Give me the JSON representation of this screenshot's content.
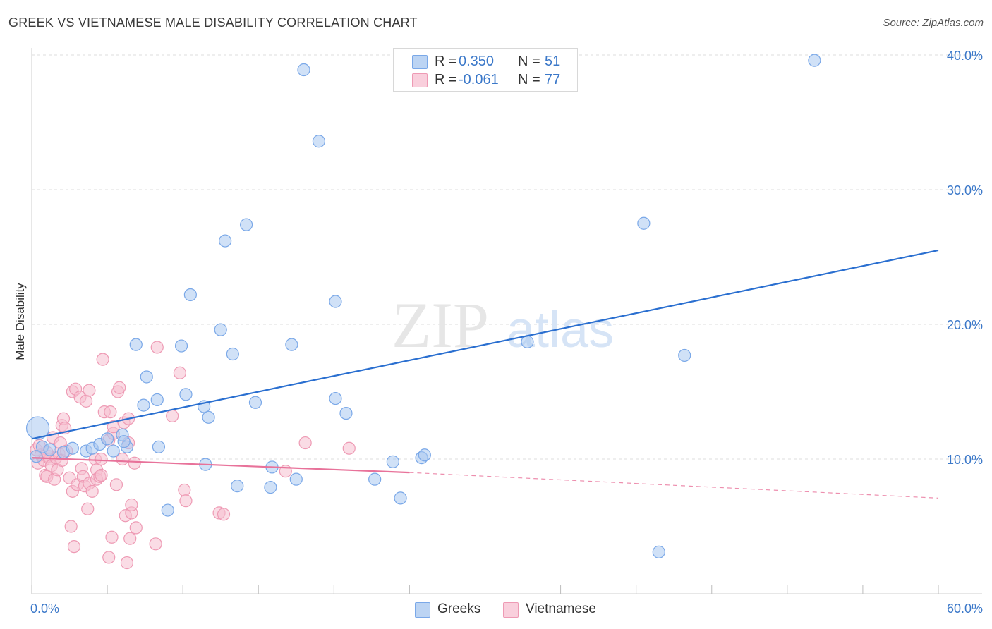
{
  "title": "GREEK VS VIETNAMESE MALE DISABILITY CORRELATION CHART",
  "source": "Source: ZipAtlas.com",
  "watermark": {
    "zip": "ZIP",
    "atlas": "atlas"
  },
  "legend_top": [
    {
      "r_label": "R =",
      "r_value": "0.350",
      "n_label": "N =",
      "n_value": "51",
      "color": "#7aa8e8"
    },
    {
      "r_label": "R =",
      "r_value": "-0.061",
      "n_label": "N =",
      "n_value": "77",
      "color": "#f09ab5"
    }
  ],
  "legend_bottom": [
    {
      "label": "Greeks",
      "color": "#7aa8e8"
    },
    {
      "label": "Vietnamese",
      "color": "#f09ab5"
    }
  ],
  "colors": {
    "greeks_fill": "#a9c8f0",
    "greeks_stroke": "#7aa8e8",
    "greeks_line": "#2a6fd0",
    "viet_fill": "#f6bfd0",
    "viet_stroke": "#ee9ab4",
    "viet_line": "#e8729a",
    "tick": "#3b78c9",
    "grid": "#dcdcdc"
  },
  "chart_data": {
    "type": "scatter",
    "ylabel": "Male Disability",
    "xlabel": "",
    "xlim": [
      0,
      60
    ],
    "ylim": [
      0,
      40
    ],
    "x_tick_labels": [
      {
        "v": 0,
        "label": "0.0%"
      },
      {
        "v": 60,
        "label": "60.0%"
      }
    ],
    "y_ticks": [
      {
        "v": 10,
        "label": "10.0%"
      },
      {
        "v": 20,
        "label": "20.0%"
      },
      {
        "v": 30,
        "label": "30.0%"
      },
      {
        "v": 40,
        "label": "40.0%"
      }
    ],
    "grid": true,
    "series": [
      {
        "name": "Greeks",
        "points": [
          [
            0.4,
            12.3
          ],
          [
            0.7,
            10.9
          ],
          [
            1.2,
            10.7
          ],
          [
            2.1,
            10.5
          ],
          [
            2.7,
            10.8
          ],
          [
            3.6,
            10.6
          ],
          [
            4.0,
            10.8
          ],
          [
            4.5,
            11.1
          ],
          [
            5.0,
            11.5
          ],
          [
            5.4,
            10.6
          ],
          [
            6.0,
            11.8
          ],
          [
            6.3,
            10.9
          ],
          [
            6.9,
            18.5
          ],
          [
            7.6,
            16.1
          ],
          [
            7.4,
            14.0
          ],
          [
            8.3,
            14.4
          ],
          [
            8.4,
            10.9
          ],
          [
            9.0,
            6.2
          ],
          [
            9.9,
            18.4
          ],
          [
            10.2,
            14.8
          ],
          [
            10.5,
            22.2
          ],
          [
            11.4,
            13.9
          ],
          [
            11.5,
            9.6
          ],
          [
            11.7,
            13.1
          ],
          [
            12.5,
            19.6
          ],
          [
            12.8,
            26.2
          ],
          [
            13.3,
            17.8
          ],
          [
            13.6,
            8.0
          ],
          [
            14.2,
            27.4
          ],
          [
            14.8,
            14.2
          ],
          [
            15.8,
            7.9
          ],
          [
            15.9,
            9.4
          ],
          [
            17.2,
            18.5
          ],
          [
            17.5,
            8.5
          ],
          [
            18.0,
            38.9
          ],
          [
            19.0,
            33.6
          ],
          [
            20.1,
            21.7
          ],
          [
            20.1,
            14.5
          ],
          [
            20.8,
            13.4
          ],
          [
            22.7,
            8.5
          ],
          [
            23.9,
            9.8
          ],
          [
            24.4,
            7.1
          ],
          [
            25.8,
            10.1
          ],
          [
            26.0,
            10.3
          ],
          [
            32.8,
            18.7
          ],
          [
            40.5,
            27.5
          ],
          [
            41.5,
            3.1
          ],
          [
            43.2,
            17.7
          ],
          [
            51.8,
            39.6
          ],
          [
            0.3,
            10.2
          ],
          [
            6.1,
            11.3
          ]
        ],
        "trend": {
          "x": [
            0,
            60
          ],
          "y": [
            11.5,
            25.5
          ]
        }
      },
      {
        "name": "Vietnamese",
        "points": [
          [
            0.3,
            10.7
          ],
          [
            0.4,
            9.7
          ],
          [
            0.6,
            10.3
          ],
          [
            0.8,
            9.9
          ],
          [
            0.9,
            8.8
          ],
          [
            1.0,
            8.7
          ],
          [
            1.1,
            10.2
          ],
          [
            1.2,
            10.0
          ],
          [
            1.3,
            9.5
          ],
          [
            1.4,
            11.6
          ],
          [
            1.5,
            8.5
          ],
          [
            1.6,
            10.1
          ],
          [
            1.7,
            9.2
          ],
          [
            1.8,
            10.4
          ],
          [
            1.9,
            11.2
          ],
          [
            2.0,
            9.9
          ],
          [
            2.0,
            12.5
          ],
          [
            2.1,
            13.0
          ],
          [
            2.2,
            12.3
          ],
          [
            2.3,
            10.6
          ],
          [
            2.5,
            8.6
          ],
          [
            2.6,
            5.0
          ],
          [
            2.7,
            7.6
          ],
          [
            2.7,
            15.0
          ],
          [
            2.8,
            3.5
          ],
          [
            2.9,
            15.2
          ],
          [
            3.0,
            8.1
          ],
          [
            3.2,
            14.6
          ],
          [
            3.3,
            9.3
          ],
          [
            3.4,
            8.7
          ],
          [
            3.5,
            8.0
          ],
          [
            3.6,
            14.3
          ],
          [
            3.7,
            6.3
          ],
          [
            3.8,
            8.2
          ],
          [
            3.8,
            15.1
          ],
          [
            4.0,
            7.6
          ],
          [
            4.2,
            10.0
          ],
          [
            4.3,
            9.2
          ],
          [
            4.3,
            8.5
          ],
          [
            4.5,
            8.7
          ],
          [
            4.6,
            8.8
          ],
          [
            4.6,
            10.0
          ],
          [
            4.7,
            17.4
          ],
          [
            4.8,
            13.5
          ],
          [
            5.1,
            2.7
          ],
          [
            5.1,
            11.4
          ],
          [
            5.2,
            13.5
          ],
          [
            5.3,
            4.2
          ],
          [
            5.4,
            11.9
          ],
          [
            5.4,
            12.4
          ],
          [
            5.6,
            8.1
          ],
          [
            5.7,
            15.0
          ],
          [
            5.8,
            15.3
          ],
          [
            6.0,
            10.0
          ],
          [
            6.1,
            12.7
          ],
          [
            6.2,
            5.8
          ],
          [
            6.3,
            2.3
          ],
          [
            6.4,
            11.2
          ],
          [
            6.4,
            13.0
          ],
          [
            6.5,
            4.1
          ],
          [
            6.6,
            6.0
          ],
          [
            6.6,
            6.6
          ],
          [
            6.8,
            9.7
          ],
          [
            6.9,
            4.9
          ],
          [
            8.2,
            3.7
          ],
          [
            8.3,
            18.3
          ],
          [
            9.3,
            13.2
          ],
          [
            9.8,
            16.4
          ],
          [
            10.1,
            7.7
          ],
          [
            10.2,
            6.9
          ],
          [
            12.4,
            6.0
          ],
          [
            12.7,
            5.9
          ],
          [
            16.8,
            9.1
          ],
          [
            18.1,
            11.2
          ],
          [
            21.0,
            10.8
          ],
          [
            1.0,
            10.5
          ],
          [
            0.5,
            11.0
          ]
        ],
        "trend": {
          "x": [
            0,
            25
          ],
          "y": [
            10.1,
            9.0
          ]
        },
        "trend_dashed": {
          "x": [
            25,
            60
          ],
          "y": [
            9.0,
            7.1
          ]
        }
      }
    ]
  }
}
